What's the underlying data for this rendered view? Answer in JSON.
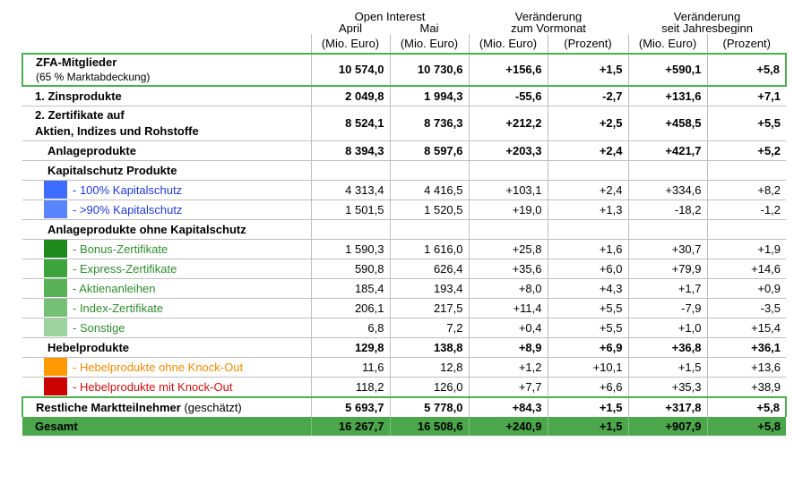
{
  "header": {
    "group_oi": "Open Interest",
    "group_vormonat_1": "Veränderung",
    "group_vormonat_2": "zum Vormonat",
    "group_jahr_1": "Veränderung",
    "group_jahr_2": "seit Jahresbeginn",
    "april": "April",
    "mai": "Mai",
    "u1": "(Mio. Euro)",
    "u2": "(Mio. Euro)",
    "u3": "(Mio. Euro)",
    "u4": "(Prozent)",
    "u5": "(Mio. Euro)",
    "u6": "(Prozent)"
  },
  "rows": {
    "zfa": {
      "label": "ZFA-Mitglieder",
      "sub": "(65 % Marktabdeckung)",
      "v": [
        "10 574,0",
        "10 730,6",
        "+156,6",
        "+1,5",
        "+590,1",
        "+5,8"
      ]
    },
    "zins": {
      "label": "1. Zinsprodukte",
      "v": [
        "2 049,8",
        "1 994,3",
        "-55,6",
        "-2,7",
        "+131,6",
        "+7,1"
      ]
    },
    "zert": {
      "label": "2. Zertifikate auf",
      "sub": "Aktien, Indizes und Rohstoffe",
      "v": [
        "8 524,1",
        "8 736,3",
        "+212,2",
        "+2,5",
        "+458,5",
        "+5,5"
      ]
    },
    "anlage": {
      "label": "Anlageprodukte",
      "v": [
        "8 394,3",
        "8 597,6",
        "+203,3",
        "+2,4",
        "+421,7",
        "+5,2"
      ]
    },
    "kap_head": {
      "label": "Kapitalschutz Produkte"
    },
    "kap100": {
      "label": "- 100% Kapitalschutz",
      "v": [
        "4 313,4",
        "4 416,5",
        "+103,1",
        "+2,4",
        "+334,6",
        "+8,2"
      ]
    },
    "kap90": {
      "label": "- >90% Kapitalschutz",
      "v": [
        "1 501,5",
        "1 520,5",
        "+19,0",
        "+1,3",
        "-18,2",
        "-1,2"
      ]
    },
    "ohne_head": {
      "label": "Anlageprodukte ohne Kapitalschutz"
    },
    "bonus": {
      "label": "- Bonus-Zertifikate",
      "v": [
        "1 590,3",
        "1 616,0",
        "+25,8",
        "+1,6",
        "+30,7",
        "+1,9"
      ]
    },
    "express": {
      "label": "- Express-Zertifikate",
      "v": [
        "590,8",
        "626,4",
        "+35,6",
        "+6,0",
        "+79,9",
        "+14,6"
      ]
    },
    "aktien": {
      "label": "- Aktienanleihen",
      "v": [
        "185,4",
        "193,4",
        "+8,0",
        "+4,3",
        "+1,7",
        "+0,9"
      ]
    },
    "index": {
      "label": "- Index-Zertifikate",
      "v": [
        "206,1",
        "217,5",
        "+11,4",
        "+5,5",
        "-7,9",
        "-3,5"
      ]
    },
    "sonstige": {
      "label": "- Sonstige",
      "v": [
        "6,8",
        "7,2",
        "+0,4",
        "+5,5",
        "+1,0",
        "+15,4"
      ]
    },
    "hebel": {
      "label": "Hebelprodukte",
      "v": [
        "129,8",
        "138,8",
        "+8,9",
        "+6,9",
        "+36,8",
        "+36,1"
      ]
    },
    "hebel_ohne": {
      "label": "- Hebelprodukte ohne Knock-Out",
      "v": [
        "11,6",
        "12,8",
        "+1,2",
        "+10,1",
        "+1,5",
        "+13,6"
      ]
    },
    "hebel_mit": {
      "label": "- Hebelprodukte mit Knock-Out",
      "v": [
        "118,2",
        "126,0",
        "+7,7",
        "+6,6",
        "+35,3",
        "+38,9"
      ]
    },
    "restliche": {
      "label": "Restliche Marktteilnehmer",
      "sub": " (geschätzt)",
      "v": [
        "5 693,7",
        "5 778,0",
        "+84,3",
        "+1,5",
        "+317,8",
        "+5,8"
      ]
    },
    "gesamt": {
      "label": "Gesamt",
      "v": [
        "16 267,7",
        "16 508,6",
        "+240,9",
        "+1,5",
        "+907,9",
        "+5,8"
      ]
    }
  },
  "colors": {
    "kap100": "#3d6cff",
    "kap90": "#5b85ff",
    "bonus": "#1e8a1e",
    "express": "#3da33d",
    "aktien": "#58b358",
    "index": "#74c074",
    "sonstige": "#9dd39d",
    "hebel_ohne": "#ff9900",
    "hebel_mit": "#cc0000",
    "total_bg": "#4ca64c",
    "box_border": "#4caf50"
  }
}
